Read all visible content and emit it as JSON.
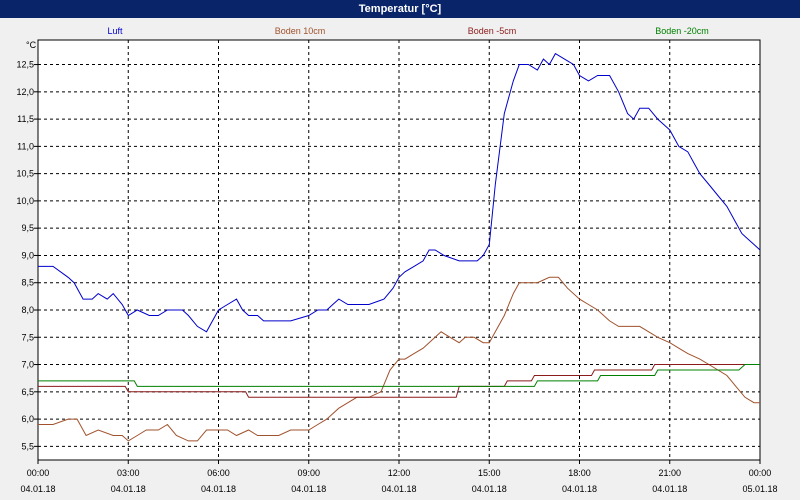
{
  "window": {
    "title": "Temperatur [°C]"
  },
  "chart_data": {
    "type": "line",
    "title": "Temperatur [°C]",
    "ylabel": "°C",
    "ylim": [
      5.25,
      12.95
    ],
    "xlim_hours": [
      0,
      24
    ],
    "yticks": [
      "5,5",
      "6,0",
      "6,5",
      "7,0",
      "7,5",
      "8,0",
      "8,5",
      "9,0",
      "9,5",
      "10,0",
      "10,5",
      "11,0",
      "11,5",
      "12,0",
      "12,5"
    ],
    "xticks": [
      {
        "time": "00:00",
        "date": "04.01.18"
      },
      {
        "time": "03:00",
        "date": "04.01.18"
      },
      {
        "time": "06:00",
        "date": "04.01.18"
      },
      {
        "time": "09:00",
        "date": "04.01.18"
      },
      {
        "time": "12:00",
        "date": "04.01.18"
      },
      {
        "time": "15:00",
        "date": "04.01.18"
      },
      {
        "time": "18:00",
        "date": "04.01.18"
      },
      {
        "time": "21:00",
        "date": "04.01.18"
      },
      {
        "time": "00:00",
        "date": "05.01.18"
      }
    ],
    "grid": true,
    "legend_position": "top",
    "series": [
      {
        "name": "Luft",
        "color": "#0000cc",
        "x": [
          0,
          0.5,
          1,
          1.2,
          1.5,
          1.8,
          2,
          2.3,
          2.5,
          2.8,
          3,
          3.3,
          3.7,
          4,
          4.3,
          4.6,
          4.8,
          5,
          5.3,
          5.6,
          5.8,
          6,
          6.3,
          6.6,
          6.8,
          7,
          7.3,
          7.5,
          7.7,
          8,
          8.4,
          9,
          9.3,
          9.6,
          9.8,
          10,
          10.3,
          10.6,
          11,
          11.5,
          11.8,
          12,
          12.2,
          12.5,
          12.8,
          13,
          13.2,
          13.5,
          14,
          14.3,
          14.6,
          14.8,
          15,
          15.2,
          15.5,
          15.8,
          16,
          16.3,
          16.6,
          16.8,
          17,
          17.2,
          17.5,
          17.8,
          18,
          18.3,
          18.6,
          19,
          19.3,
          19.6,
          19.8,
          20,
          20.3,
          20.6,
          20.8,
          21,
          21.3,
          21.6,
          21.8,
          22,
          22.3,
          22.6,
          22.9,
          23.2,
          23.4,
          23.6,
          23.8,
          24
        ],
        "y": [
          8.8,
          8.8,
          8.6,
          8.5,
          8.2,
          8.2,
          8.3,
          8.2,
          8.3,
          8.1,
          7.9,
          8.0,
          7.9,
          7.9,
          8.0,
          8.0,
          8.0,
          7.9,
          7.7,
          7.6,
          7.8,
          8.0,
          8.1,
          8.2,
          8.0,
          7.9,
          7.9,
          7.8,
          7.8,
          7.8,
          7.8,
          7.9,
          8.0,
          8.0,
          8.1,
          8.2,
          8.1,
          8.1,
          8.1,
          8.2,
          8.4,
          8.6,
          8.7,
          8.8,
          8.9,
          9.1,
          9.1,
          9.0,
          8.9,
          8.9,
          8.9,
          9.0,
          9.2,
          10.3,
          11.6,
          12.2,
          12.5,
          12.5,
          12.4,
          12.6,
          12.5,
          12.7,
          12.6,
          12.5,
          12.3,
          12.2,
          12.3,
          12.3,
          12.0,
          11.6,
          11.5,
          11.7,
          11.7,
          11.5,
          11.4,
          11.3,
          11.0,
          10.9,
          10.7,
          10.5,
          10.3,
          10.1,
          9.9,
          9.6,
          9.4,
          9.3,
          9.2,
          9.1
        ]
      },
      {
        "name": "Boden 10cm",
        "color": "#a0522d",
        "x": [
          0,
          0.5,
          1,
          1.3,
          1.6,
          2,
          2.5,
          2.8,
          3,
          3.3,
          3.6,
          4,
          4.3,
          4.6,
          5,
          5.3,
          5.6,
          6,
          6.3,
          6.6,
          7,
          7.3,
          7.6,
          8,
          8.4,
          9,
          9.3,
          9.6,
          10,
          10.3,
          10.6,
          11,
          11.4,
          11.7,
          12,
          12.2,
          12.5,
          12.8,
          13,
          13.2,
          13.4,
          13.7,
          14,
          14.2,
          14.5,
          14.8,
          15,
          15.2,
          15.5,
          15.8,
          16,
          16.3,
          16.6,
          17,
          17.3,
          17.6,
          18,
          18.3,
          18.6,
          19,
          19.3,
          19.6,
          20,
          20.3,
          20.6,
          21,
          21.3,
          21.6,
          22,
          22.3,
          22.6,
          22.9,
          23.2,
          23.5,
          23.8,
          24
        ],
        "y": [
          5.9,
          5.9,
          6.0,
          6.0,
          5.7,
          5.8,
          5.7,
          5.7,
          5.6,
          5.7,
          5.8,
          5.8,
          5.9,
          5.7,
          5.6,
          5.6,
          5.8,
          5.8,
          5.8,
          5.7,
          5.8,
          5.7,
          5.7,
          5.7,
          5.8,
          5.8,
          5.9,
          6.0,
          6.2,
          6.3,
          6.4,
          6.4,
          6.5,
          6.9,
          7.1,
          7.1,
          7.2,
          7.3,
          7.4,
          7.5,
          7.6,
          7.5,
          7.4,
          7.5,
          7.5,
          7.4,
          7.4,
          7.6,
          7.9,
          8.3,
          8.5,
          8.5,
          8.5,
          8.6,
          8.6,
          8.4,
          8.2,
          8.1,
          8.0,
          7.8,
          7.7,
          7.7,
          7.7,
          7.6,
          7.5,
          7.4,
          7.3,
          7.2,
          7.1,
          7.0,
          6.9,
          6.8,
          6.6,
          6.4,
          6.3,
          6.3
        ]
      },
      {
        "name": "Boden -5cm",
        "color": "#8b1a1a",
        "x": [
          0,
          2.9,
          3,
          5.2,
          5.4,
          6.9,
          7,
          13.9,
          14,
          15.5,
          15.6,
          16.4,
          16.5,
          18.4,
          18.5,
          20.4,
          20.5,
          24
        ],
        "y": [
          6.6,
          6.6,
          6.5,
          6.5,
          6.5,
          6.5,
          6.4,
          6.4,
          6.6,
          6.6,
          6.7,
          6.7,
          6.8,
          6.8,
          6.9,
          6.9,
          7.0,
          7.0
        ]
      },
      {
        "name": "Boden -20cm",
        "color": "#008000",
        "x": [
          0,
          3.2,
          3.3,
          14.5,
          14.6,
          16.5,
          16.6,
          18.6,
          18.7,
          20.5,
          20.6,
          23.3,
          23.5,
          24
        ],
        "y": [
          6.7,
          6.7,
          6.6,
          6.6,
          6.6,
          6.6,
          6.7,
          6.7,
          6.8,
          6.8,
          6.9,
          6.9,
          7.0,
          7.0
        ]
      }
    ]
  }
}
